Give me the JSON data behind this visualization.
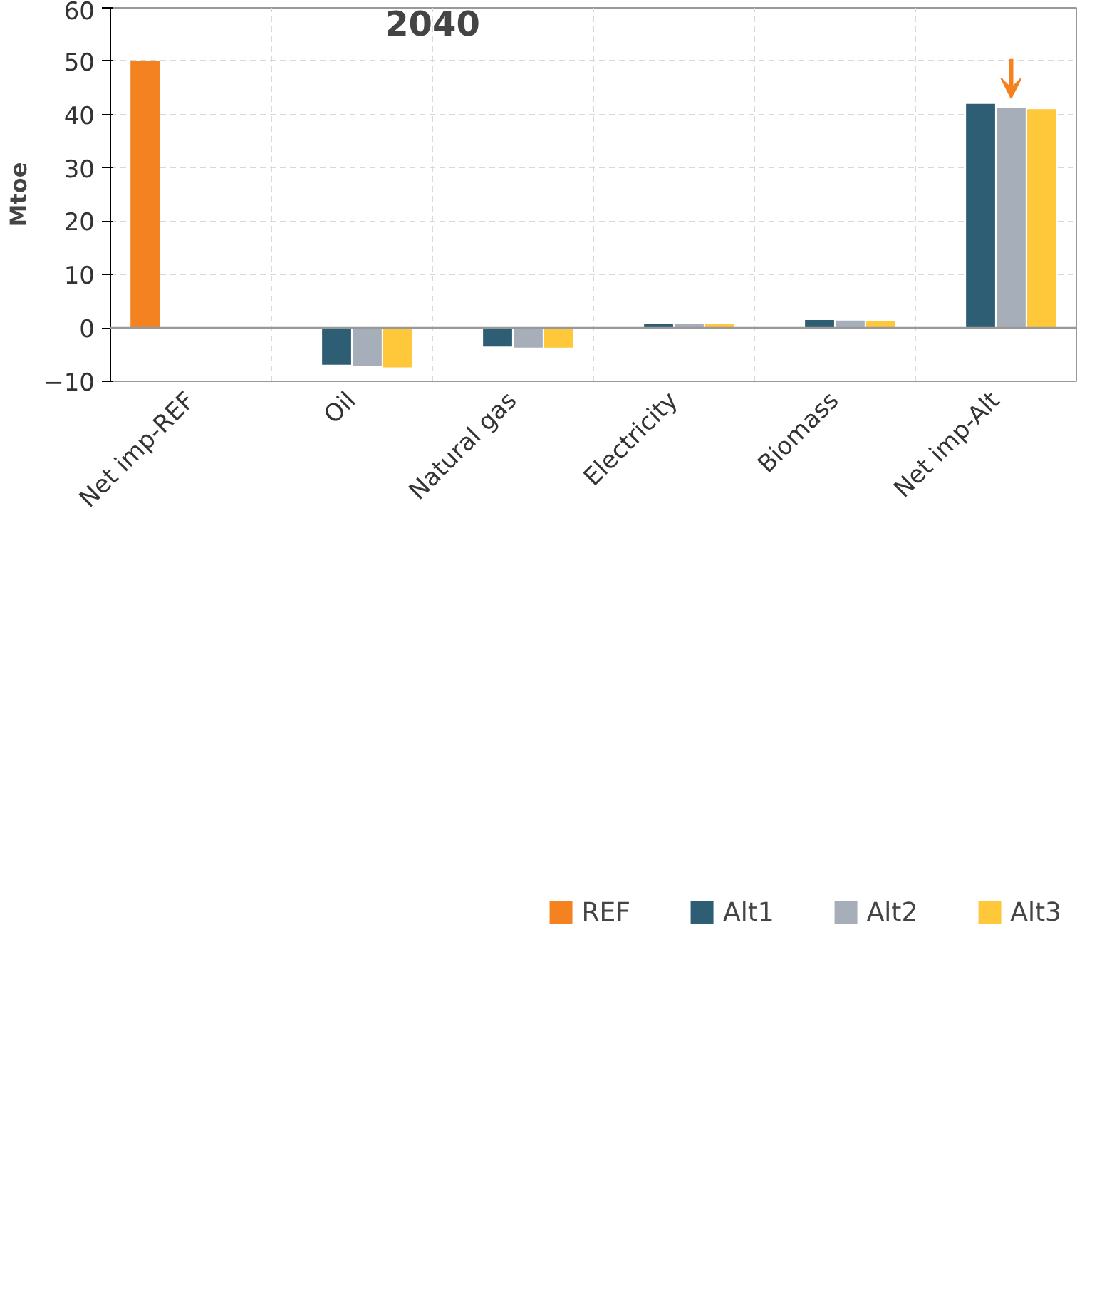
{
  "chart_data": {
    "type": "bar",
    "title": "2040",
    "ylabel": "Mtoe",
    "categories": [
      "Net imp-REF",
      "Oil",
      "Natural gas",
      "Electricity",
      "Biomass",
      "Net imp-Alt"
    ],
    "series": [
      {
        "name": "REF",
        "color": "#f58220",
        "values": [
          50.1,
          null,
          null,
          null,
          null,
          null
        ]
      },
      {
        "name": "Alt1",
        "color": "#2e5e73",
        "values": [
          null,
          -6.9,
          -3.5,
          0.8,
          1.5,
          42.0
        ]
      },
      {
        "name": "Alt2",
        "color": "#a6aeb9",
        "values": [
          null,
          -7.1,
          -3.7,
          0.8,
          1.4,
          41.3
        ]
      },
      {
        "name": "Alt3",
        "color": "#ffc73a",
        "values": [
          null,
          -7.4,
          -3.7,
          0.8,
          1.3,
          41.0
        ]
      }
    ],
    "ylim": [
      -10,
      60
    ],
    "yticks": [
      -10,
      0,
      10,
      20,
      30,
      40,
      50,
      60
    ],
    "grid": true,
    "legend": "bottom"
  }
}
